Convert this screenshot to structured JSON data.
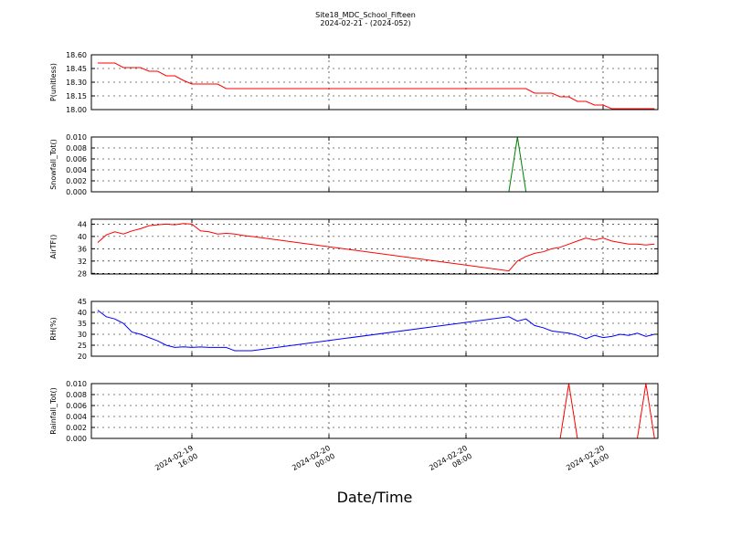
{
  "chart_data": [
    {
      "type": "line",
      "title": "Site18_MDC_School_Fifteen",
      "subtitle": "2024-02-21 - (2024-052)",
      "ylabel": "P(unitless)",
      "x": [
        "2024-02-19 10:30",
        "2024-02-19 11:00",
        "2024-02-19 11:30",
        "2024-02-19 12:00",
        "2024-02-19 12:30",
        "2024-02-19 13:00",
        "2024-02-19 13:30",
        "2024-02-19 14:00",
        "2024-02-19 14:30",
        "2024-02-19 15:00",
        "2024-02-19 15:30",
        "2024-02-19 16:00",
        "2024-02-19 16:30",
        "2024-02-19 17:00",
        "2024-02-19 17:30",
        "2024-02-19 18:00",
        "2024-02-19 18:30",
        "2024-02-19 19:00",
        "2024-02-19 19:30",
        "2024-02-20 10:30",
        "2024-02-20 11:00",
        "2024-02-20 11:30",
        "2024-02-20 12:00",
        "2024-02-20 12:30",
        "2024-02-20 13:00",
        "2024-02-20 13:30",
        "2024-02-20 14:00",
        "2024-02-20 14:30",
        "2024-02-20 15:00",
        "2024-02-20 15:30",
        "2024-02-20 16:00",
        "2024-02-20 16:30",
        "2024-02-20 17:00",
        "2024-02-20 17:30",
        "2024-02-20 18:00",
        "2024-02-20 18:30",
        "2024-02-20 19:00"
      ],
      "values": [
        18.51,
        18.51,
        18.51,
        18.46,
        18.46,
        18.46,
        18.42,
        18.42,
        18.37,
        18.37,
        18.32,
        18.28,
        18.28,
        18.28,
        18.28,
        18.23,
        18.23,
        18.23,
        18.23,
        18.23,
        18.23,
        18.23,
        18.18,
        18.18,
        18.18,
        18.14,
        18.14,
        18.09,
        18.09,
        18.05,
        18.05,
        18.01,
        18.01,
        18.01,
        18.01,
        18.01,
        18.01
      ],
      "color": "#ff0000",
      "xlim": [
        "2024-02-19 10:08",
        "2024-02-20 19:12"
      ],
      "xticks": [
        "2024-02-19 16:00",
        "2024-02-20 00:00",
        "2024-02-20 08:00",
        "2024-02-20 16:00"
      ],
      "ylim": [
        18.0,
        18.6
      ],
      "yticks": [
        {
          "value": 18.0,
          "label": "18.00"
        },
        18.15,
        {
          "value": 18.3,
          "label": "18.30"
        },
        18.45,
        {
          "value": 18.6,
          "label": "18.60"
        }
      ],
      "grid": true
    },
    {
      "type": "line",
      "ylabel": "Snowfall_Tot()",
      "x": [
        "2024-02-19 10:30",
        "2024-02-19 11:00",
        "2024-02-19 11:30",
        "2024-02-19 12:00",
        "2024-02-19 12:30",
        "2024-02-19 13:00",
        "2024-02-19 13:30",
        "2024-02-19 14:00",
        "2024-02-19 14:30",
        "2024-02-19 15:00",
        "2024-02-19 15:30",
        "2024-02-19 16:00",
        "2024-02-19 16:30",
        "2024-02-19 17:00",
        "2024-02-19 17:30",
        "2024-02-19 18:00",
        "2024-02-19 18:30",
        "2024-02-19 19:00",
        "2024-02-19 19:30",
        "2024-02-20 10:30",
        "2024-02-20 11:00",
        "2024-02-20 11:30",
        "2024-02-20 12:00",
        "2024-02-20 12:30",
        "2024-02-20 13:00",
        "2024-02-20 13:30",
        "2024-02-20 14:00",
        "2024-02-20 14:30",
        "2024-02-20 15:00",
        "2024-02-20 15:30",
        "2024-02-20 16:00",
        "2024-02-20 16:30",
        "2024-02-20 17:00",
        "2024-02-20 17:30",
        "2024-02-20 18:00",
        "2024-02-20 18:30",
        "2024-02-20 19:00"
      ],
      "values": [
        0,
        0,
        0,
        0,
        0,
        0,
        0,
        0,
        0,
        0,
        0,
        0,
        0,
        0,
        0,
        0,
        0,
        0,
        0,
        0,
        0.01,
        0,
        0,
        0,
        0,
        0,
        0,
        0,
        0,
        0,
        0,
        0,
        0,
        0,
        0,
        0,
        0
      ],
      "color": "#008000",
      "xlim": [
        "2024-02-19 10:08",
        "2024-02-20 19:12"
      ],
      "xticks": [
        "2024-02-19 16:00",
        "2024-02-20 00:00",
        "2024-02-20 08:00",
        "2024-02-20 16:00"
      ],
      "ylim": [
        0,
        0.01
      ],
      "yticks": [
        {
          "value": 0,
          "label": "0.000"
        },
        {
          "value": 0.002,
          "label": "0.002"
        },
        {
          "value": 0.004,
          "label": "0.004"
        },
        {
          "value": 0.006,
          "label": "0.006"
        },
        {
          "value": 0.008,
          "label": "0.008"
        },
        {
          "value": 0.01,
          "label": "0.010"
        }
      ],
      "grid": true
    },
    {
      "type": "line",
      "ylabel": "AirTF()",
      "x": [
        "2024-02-19 10:30",
        "2024-02-19 11:00",
        "2024-02-19 11:30",
        "2024-02-19 12:00",
        "2024-02-19 12:30",
        "2024-02-19 13:00",
        "2024-02-19 13:30",
        "2024-02-19 14:00",
        "2024-02-19 14:30",
        "2024-02-19 15:00",
        "2024-02-19 15:30",
        "2024-02-19 16:00",
        "2024-02-19 16:30",
        "2024-02-19 17:00",
        "2024-02-19 17:30",
        "2024-02-19 18:00",
        "2024-02-19 18:30",
        "2024-02-19 19:00",
        "2024-02-19 19:30",
        "2024-02-20 10:30",
        "2024-02-20 11:00",
        "2024-02-20 11:30",
        "2024-02-20 12:00",
        "2024-02-20 12:30",
        "2024-02-20 13:00",
        "2024-02-20 13:30",
        "2024-02-20 14:00",
        "2024-02-20 14:30",
        "2024-02-20 15:00",
        "2024-02-20 15:30",
        "2024-02-20 16:00",
        "2024-02-20 16:30",
        "2024-02-20 17:00",
        "2024-02-20 17:30",
        "2024-02-20 18:00",
        "2024-02-20 18:30",
        "2024-02-20 19:00"
      ],
      "values": [
        38,
        40.5,
        41.5,
        40.8,
        41.8,
        42.5,
        43.5,
        43.8,
        44,
        43.8,
        44.2,
        44,
        41.8,
        41.5,
        40.8,
        41,
        40.8,
        40.3,
        40,
        28.8,
        32,
        33.5,
        34.5,
        35,
        36,
        36.5,
        37.5,
        38.5,
        39.5,
        38.8,
        39.5,
        38.5,
        38,
        37.5,
        37.5,
        37.2,
        37.5
      ],
      "color": "#ff0000",
      "xlim": [
        "2024-02-19 10:08",
        "2024-02-20 19:12"
      ],
      "xticks": [
        "2024-02-19 16:00",
        "2024-02-20 00:00",
        "2024-02-20 08:00",
        "2024-02-20 16:00"
      ],
      "ylim": [
        27.8,
        45.6
      ],
      "yticks": [
        28,
        32,
        36,
        40,
        44
      ],
      "grid": true
    },
    {
      "type": "line",
      "ylabel": "RH(%)",
      "x": [
        "2024-02-19 10:30",
        "2024-02-19 11:00",
        "2024-02-19 11:30",
        "2024-02-19 12:00",
        "2024-02-19 12:30",
        "2024-02-19 13:00",
        "2024-02-19 13:30",
        "2024-02-19 14:00",
        "2024-02-19 14:30",
        "2024-02-19 15:00",
        "2024-02-19 15:30",
        "2024-02-19 16:00",
        "2024-02-19 16:30",
        "2024-02-19 17:00",
        "2024-02-19 17:30",
        "2024-02-19 18:00",
        "2024-02-19 18:30",
        "2024-02-19 19:00",
        "2024-02-19 19:30",
        "2024-02-20 10:30",
        "2024-02-20 11:00",
        "2024-02-20 11:30",
        "2024-02-20 12:00",
        "2024-02-20 12:30",
        "2024-02-20 13:00",
        "2024-02-20 13:30",
        "2024-02-20 14:00",
        "2024-02-20 14:30",
        "2024-02-20 15:00",
        "2024-02-20 15:30",
        "2024-02-20 16:00",
        "2024-02-20 16:30",
        "2024-02-20 17:00",
        "2024-02-20 17:30",
        "2024-02-20 18:00",
        "2024-02-20 18:30",
        "2024-02-20 19:00"
      ],
      "values": [
        41,
        38,
        37,
        35,
        31,
        30,
        28.5,
        27,
        25,
        24,
        24.3,
        24,
        24.2,
        24,
        24,
        24,
        22.5,
        22.5,
        22.5,
        38,
        36,
        37,
        34,
        33,
        31.5,
        31,
        30.5,
        29.5,
        28,
        29.5,
        28.5,
        29,
        30,
        29.5,
        30.5,
        29,
        30
      ],
      "color": "#0000ff",
      "xlim": [
        "2024-02-19 10:08",
        "2024-02-20 19:12"
      ],
      "xticks": [
        "2024-02-19 16:00",
        "2024-02-20 00:00",
        "2024-02-20 08:00",
        "2024-02-20 16:00"
      ],
      "ylim": [
        20,
        45
      ],
      "yticks": [
        20,
        25,
        30,
        35,
        40,
        45
      ],
      "grid": true
    },
    {
      "type": "line",
      "ylabel": "Rainfall_Tot()",
      "xlabel": "Date/Time",
      "x": [
        "2024-02-19 10:30",
        "2024-02-19 11:00",
        "2024-02-19 11:30",
        "2024-02-19 12:00",
        "2024-02-19 12:30",
        "2024-02-19 13:00",
        "2024-02-19 13:30",
        "2024-02-19 14:00",
        "2024-02-19 14:30",
        "2024-02-19 15:00",
        "2024-02-19 15:30",
        "2024-02-19 16:00",
        "2024-02-19 16:30",
        "2024-02-19 17:00",
        "2024-02-19 17:30",
        "2024-02-19 18:00",
        "2024-02-19 18:30",
        "2024-02-19 19:00",
        "2024-02-19 19:30",
        "2024-02-20 10:30",
        "2024-02-20 11:00",
        "2024-02-20 11:30",
        "2024-02-20 12:00",
        "2024-02-20 12:30",
        "2024-02-20 13:00",
        "2024-02-20 13:30",
        "2024-02-20 14:00",
        "2024-02-20 14:30",
        "2024-02-20 15:00",
        "2024-02-20 15:30",
        "2024-02-20 16:00",
        "2024-02-20 16:30",
        "2024-02-20 17:00",
        "2024-02-20 17:30",
        "2024-02-20 18:00",
        "2024-02-20 18:30",
        "2024-02-20 19:00"
      ],
      "values": [
        0,
        0,
        0,
        0,
        0,
        0,
        0,
        0,
        0,
        0,
        0,
        0,
        0,
        0,
        0,
        0,
        0,
        0,
        0,
        0,
        0,
        0,
        0,
        0,
        0,
        0,
        0.01,
        0,
        0,
        0,
        0,
        0,
        0,
        0,
        0,
        0.01,
        0
      ],
      "color": "#ff0000",
      "xlim": [
        "2024-02-19 10:08",
        "2024-02-20 19:12"
      ],
      "xticks": [
        "2024-02-19 16:00",
        "2024-02-20 00:00",
        "2024-02-20 08:00",
        "2024-02-20 16:00"
      ],
      "ylim": [
        0,
        0.01
      ],
      "yticks": [
        {
          "value": 0,
          "label": "0.000"
        },
        {
          "value": 0.002,
          "label": "0.002"
        },
        {
          "value": 0.004,
          "label": "0.004"
        },
        {
          "value": 0.006,
          "label": "0.006"
        },
        {
          "value": 0.008,
          "label": "0.008"
        },
        {
          "value": 0.01,
          "label": "0.010"
        }
      ],
      "grid": true
    }
  ]
}
